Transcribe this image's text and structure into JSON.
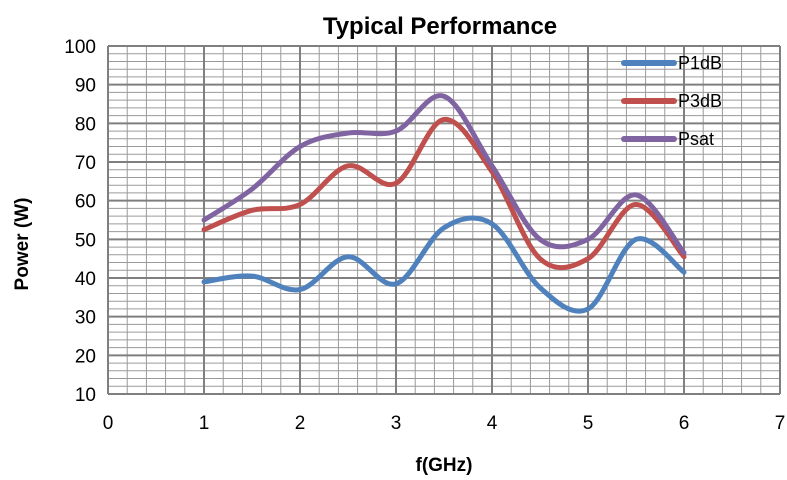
{
  "chart_data": {
    "type": "line",
    "title": "Typical Performance",
    "xlabel": "f(GHz)",
    "ylabel": "Power (W)",
    "xlim": [
      0,
      7
    ],
    "ylim": [
      10,
      100
    ],
    "x_ticks": [
      0,
      1,
      2,
      3,
      4,
      5,
      6,
      7
    ],
    "y_ticks": [
      10,
      20,
      30,
      40,
      50,
      60,
      70,
      80,
      90,
      100
    ],
    "grid": true,
    "minor_grid": true,
    "legend_position": "top-right",
    "series": [
      {
        "name": "P1dB",
        "color": "#4f81bd",
        "x": [
          1,
          1.5,
          2,
          2.5,
          3,
          3.5,
          4,
          4.5,
          5,
          5.5,
          6
        ],
        "y": [
          39,
          40.5,
          37,
          45.5,
          38.5,
          53,
          54,
          37.5,
          32,
          50,
          41.5
        ]
      },
      {
        "name": "P3dB",
        "color": "#c0504d",
        "x": [
          1,
          1.5,
          2,
          2.5,
          3,
          3.5,
          4,
          4.5,
          5,
          5.5,
          6
        ],
        "y": [
          52.5,
          57.5,
          59,
          69,
          64.5,
          81,
          67.5,
          45,
          45,
          59,
          45.5
        ]
      },
      {
        "name": "Psat",
        "color": "#8064a2",
        "x": [
          1,
          1.5,
          2,
          2.5,
          3,
          3.5,
          4,
          4.5,
          5,
          5.5,
          6
        ],
        "y": [
          55,
          63,
          74,
          77.5,
          78,
          87,
          69,
          50,
          50,
          61.5,
          46.5
        ]
      }
    ]
  }
}
